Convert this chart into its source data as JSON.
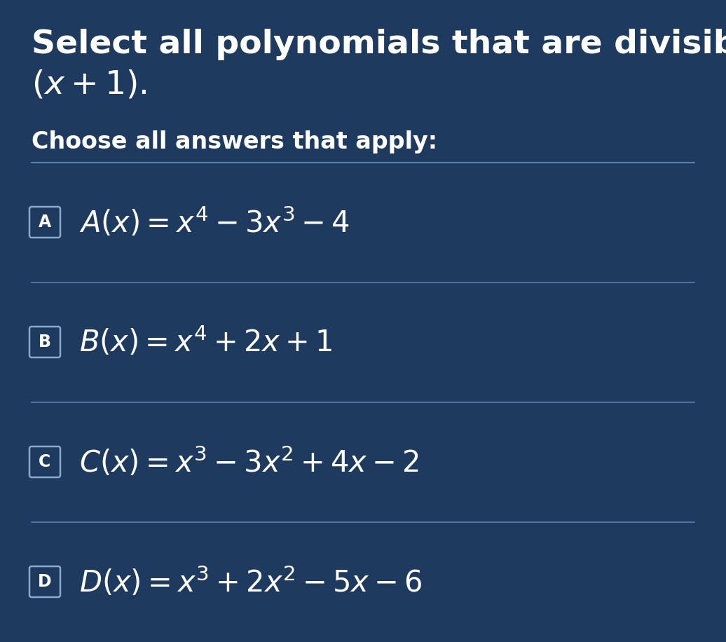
{
  "bg_color": "#1e3a5f",
  "text_color": "#ffffff",
  "divider_color": "#5a7fa8",
  "title_line1": "Select all polynomials that are divisible by",
  "title_line2": "$(x+1).$",
  "subtitle": "Choose all answers that apply:",
  "options": [
    {
      "label": "A",
      "formula": "$A(x) = x^4 - 3x^3 - 4$"
    },
    {
      "label": "B",
      "formula": "$B(x) = x^4 + 2x + 1$"
    },
    {
      "label": "C",
      "formula": "$C(x) = x^3 - 3x^2 + 4x - 2$"
    },
    {
      "label": "D",
      "formula": "$D(x) = x^3 + 2x^2 - 5x - 6$"
    }
  ],
  "box_border_color": "#8aaacc",
  "title_fontsize": 34,
  "subtitle_fontsize": 24,
  "formula_fontsize": 30,
  "label_fontsize": 17
}
